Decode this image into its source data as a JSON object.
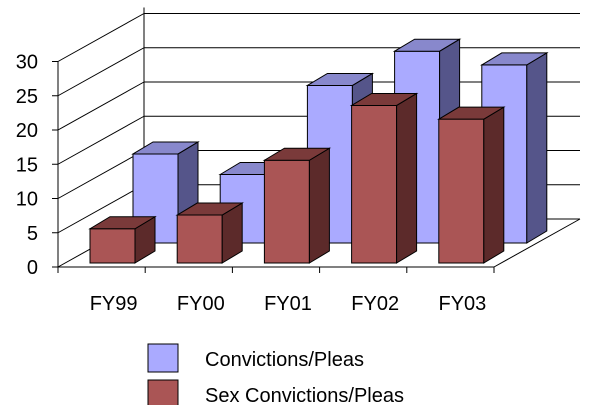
{
  "chart_data": {
    "type": "bar",
    "style": "3d",
    "categories": [
      "FY99",
      "FY00",
      "FY01",
      "FY02",
      "FY03"
    ],
    "ylim": [
      0,
      30
    ],
    "yticks": [
      0,
      5,
      10,
      15,
      20,
      25,
      30
    ],
    "grid": true,
    "legend_position": "bottom",
    "series": [
      {
        "name": "Convictions/Pleas",
        "values": [
          13,
          10,
          23,
          28,
          26
        ],
        "color": "#aaaaff",
        "side": "#55558a",
        "top": "#8888cc"
      },
      {
        "name": "Sex Convictions/Pleas",
        "values": [
          5,
          7,
          15,
          23,
          21
        ],
        "color": "#aa5555",
        "side": "#5c2a2a",
        "top": "#7a3a3a"
      }
    ]
  }
}
